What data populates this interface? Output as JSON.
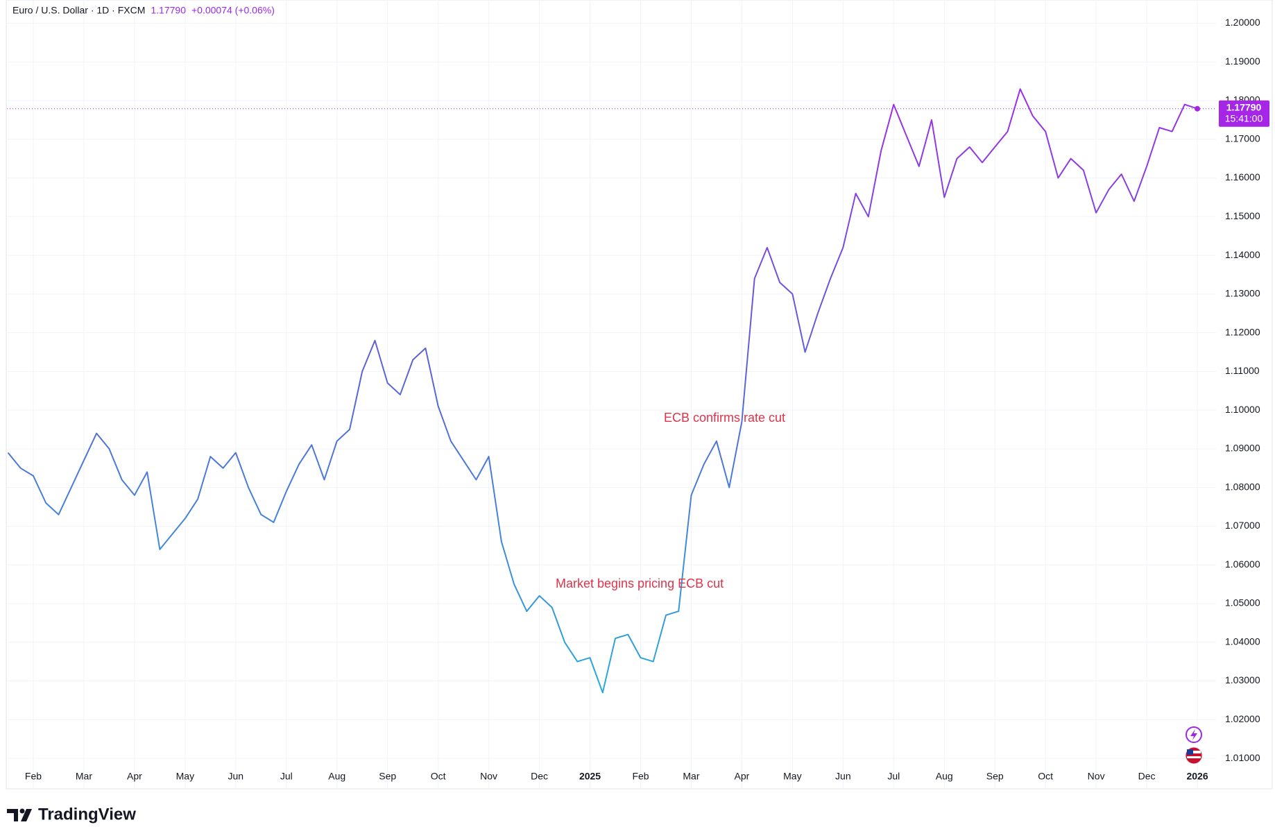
{
  "chart_data": {
    "type": "line",
    "title": "Euro / U.S. Dollar · 1D · FXCM",
    "price": "1.17790",
    "change": "+0.00074 (+0.06%)",
    "time": "15:41:00",
    "brand": "TradingView",
    "annotations": [
      "ECB confirms rate cut",
      "Market begins pricing ECB cut"
    ],
    "categories": [
      null,
      null,
      "Feb",
      null,
      null,
      null,
      "Mar",
      null,
      null,
      null,
      "Apr",
      null,
      null,
      null,
      "May",
      null,
      null,
      null,
      "Jun",
      null,
      null,
      null,
      "Jul",
      null,
      null,
      null,
      "Aug",
      null,
      null,
      null,
      "Sep",
      null,
      null,
      null,
      "Oct",
      null,
      null,
      null,
      "Nov",
      null,
      null,
      null,
      "Dec",
      null,
      null,
      null,
      "2025",
      null,
      null,
      null,
      "Feb",
      null,
      null,
      null,
      "Mar",
      null,
      null,
      null,
      "Apr",
      null,
      null,
      null,
      "May",
      null,
      null,
      null,
      "Jun",
      null,
      null,
      null,
      "Jul",
      null,
      null,
      null,
      "Aug",
      null,
      null,
      null,
      "Sep",
      null,
      null,
      null,
      "Oct",
      null,
      null,
      null,
      "Nov",
      null,
      null,
      null,
      "Dec",
      null,
      null,
      null,
      "2026"
    ],
    "values": [
      1.089,
      1.085,
      1.083,
      1.076,
      1.073,
      1.08,
      1.087,
      1.094,
      1.09,
      1.082,
      1.078,
      1.084,
      1.064,
      1.068,
      1.072,
      1.077,
      1.088,
      1.085,
      1.089,
      1.08,
      1.073,
      1.071,
      1.079,
      1.086,
      1.091,
      1.082,
      1.092,
      1.095,
      1.11,
      1.118,
      1.107,
      1.104,
      1.113,
      1.116,
      1.101,
      1.092,
      1.087,
      1.082,
      1.088,
      1.066,
      1.055,
      1.048,
      1.052,
      1.049,
      1.04,
      1.035,
      1.036,
      1.027,
      1.041,
      1.042,
      1.036,
      1.035,
      1.047,
      1.048,
      1.078,
      1.086,
      1.092,
      1.08,
      1.097,
      1.134,
      1.142,
      1.133,
      1.13,
      1.115,
      1.125,
      1.134,
      1.142,
      1.156,
      1.15,
      1.167,
      1.179,
      1.171,
      1.163,
      1.175,
      1.155,
      1.165,
      1.168,
      1.164,
      1.168,
      1.172,
      1.183,
      1.176,
      1.172,
      1.16,
      1.165,
      1.162,
      1.151,
      1.157,
      1.161,
      1.154,
      1.163,
      1.173,
      1.172,
      1.179,
      1.1779
    ],
    "colors": [
      "#a626e8",
      "#5b63d6",
      "#28a8dc"
    ],
    "ylim": [
      1.0075,
      1.206
    ],
    "yticks": [
      {
        "value": 1.01,
        "label": "1.01000"
      },
      {
        "value": 1.02,
        "label": "1.02000"
      },
      {
        "value": 1.03,
        "label": "1.03000"
      },
      {
        "value": 1.04,
        "label": "1.04000"
      },
      {
        "value": 1.05,
        "label": "1.05000"
      },
      {
        "value": 1.06,
        "label": "1.06000"
      },
      {
        "value": 1.07,
        "label": "1.07000"
      },
      {
        "value": 1.08,
        "label": "1.08000"
      },
      {
        "value": 1.09,
        "label": "1.09000"
      },
      {
        "value": 1.1,
        "label": "1.10000"
      },
      {
        "value": 1.11,
        "label": "1.11000"
      },
      {
        "value": 1.12,
        "label": "1.12000"
      },
      {
        "value": 1.13,
        "label": "1.13000"
      },
      {
        "value": 1.14,
        "label": "1.14000"
      },
      {
        "value": 1.15,
        "label": "1.15000"
      },
      {
        "value": 1.16,
        "label": "1.16000"
      },
      {
        "value": 1.17,
        "label": "1.17000"
      },
      {
        "value": 1.18,
        "label": "1.18000"
      },
      {
        "value": 1.19,
        "label": "1.19000"
      },
      {
        "value": 1.2,
        "label": "1.20000"
      }
    ],
    "grid": true
  }
}
